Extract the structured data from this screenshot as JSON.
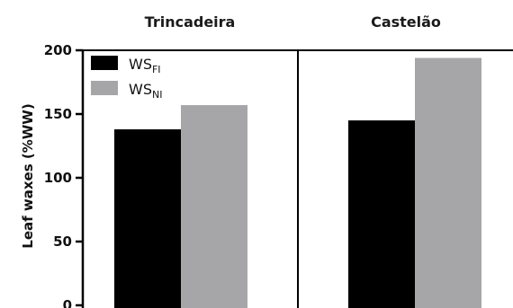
{
  "chart_data": {
    "type": "bar",
    "ylabel": "Leaf waxes (%WW)",
    "ylim": [
      0,
      200
    ],
    "yticks": [
      "0",
      "50",
      "100",
      "150",
      "200"
    ],
    "panels": [
      {
        "title": "Trincadeira"
      },
      {
        "title": "Castelão"
      }
    ],
    "series": [
      {
        "name": "WS",
        "subscript": "FI",
        "color": "#000000",
        "values": [
          138,
          145
        ]
      },
      {
        "name": "WS",
        "subscript": "NI",
        "color": "#a6a6a9",
        "values": [
          157,
          194
        ]
      }
    ],
    "legend_position": "top-left"
  }
}
